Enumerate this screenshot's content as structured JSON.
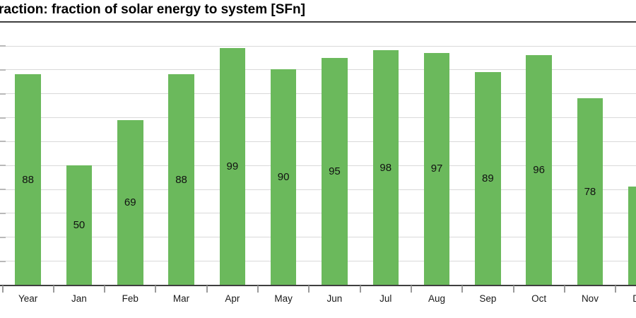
{
  "header": {
    "title": "raction: fraction of solar energy to system [SFn]"
  },
  "chart_data": {
    "type": "bar",
    "title": "raction: fraction of solar energy to system [SFn]",
    "title_note": "title clipped at left edge of screenshot",
    "categories": [
      "Year",
      "Jan",
      "Feb",
      "Mar",
      "Apr",
      "May",
      "Jun",
      "Jul",
      "Aug",
      "Sep",
      "Oct",
      "Nov",
      "Dec"
    ],
    "values": [
      88,
      50,
      69,
      88,
      99,
      90,
      95,
      98,
      97,
      89,
      96,
      78,
      41
    ],
    "value_labels": [
      "88",
      "50",
      "69",
      "88",
      "99",
      "90",
      "95",
      "98",
      "97",
      "89",
      "96",
      "78",
      ""
    ],
    "xlabel": "",
    "ylabel": "",
    "ylim": [
      0,
      100
    ],
    "gridline_step": 10,
    "grid": true,
    "legend": "none",
    "bar_color": "#6bb95c",
    "gridline_color": "#d9d9d9",
    "axis_color": "#3f3f3f",
    "value_label_color": "#111111",
    "dec_bar_clipped_at_right_edge": true,
    "y_axis_labels_clipped_at_left_edge": true
  }
}
